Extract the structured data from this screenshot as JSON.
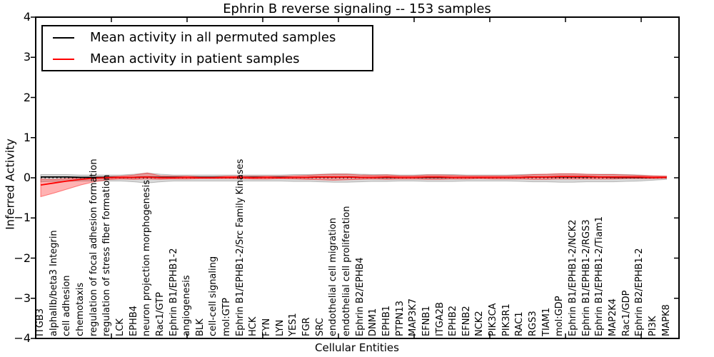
{
  "title": "Ephrin B reverse signaling -- 153 samples",
  "legend": {
    "items": [
      {
        "label": "Mean activity in all permuted samples",
        "color": "#000000"
      },
      {
        "label": "Mean activity in patient samples",
        "color": "#ff0000"
      }
    ]
  },
  "axes": {
    "ylabel": "Inferred Activity",
    "xlabel": "Cellular Entities",
    "yticks": [
      "4",
      "3",
      "2",
      "1",
      "0",
      "−1",
      "−2",
      "−3",
      "−4"
    ],
    "ylim": [
      -4,
      4
    ],
    "grid": false
  },
  "chart_data": {
    "type": "line",
    "title": "Ephrin B reverse signaling -- 153 samples",
    "xlabel": "Cellular Entities",
    "ylabel": "Inferred Activity",
    "ylim": [
      -4,
      4
    ],
    "legend_position": "upper left",
    "categories": [
      "ITGB3",
      "alphaIIb/beta3 Integrin",
      "cell adhesion",
      "chemotaxis",
      "regulation of focal adhesion formation",
      "regulation of stress fiber formation",
      "LCK",
      "EPHB4",
      "neuron projection morphogenesis",
      "Rac1/GTP",
      "Ephrin B1/EPHB1-2",
      "angiogenesis",
      "BLK",
      "cell-cell signaling",
      "mol:GTP",
      "Ephrin B1/EPHB1-2/Src Family Kinases",
      "HCK",
      "FYN",
      "LYN",
      "YES1",
      "FGR",
      "SRC",
      "endothelial cell migration",
      "endothelial cell proliferation",
      "Ephrin B2/EPHB4",
      "DNM1",
      "EPHB1",
      "PTPN13",
      "MAP3K7",
      "EFNB1",
      "ITGA2B",
      "EPHB2",
      "EFNB2",
      "NCK2",
      "PIK3CA",
      "PIK3R1",
      "RAC1",
      "RGS3",
      "TIAM1",
      "mol:GDP",
      "Ephrin B1/EPHB1-2/NCK2",
      "Ephrin B1/EPHB1-2/RGS3",
      "Ephrin B1/EPHB1-2/Tiam1",
      "MAP2K4",
      "Rac1/GDP",
      "Ephrin B2/EPHB1-2",
      "PI3K",
      "MAPK8"
    ],
    "series": [
      {
        "name": "Mean activity in all permuted samples",
        "color": "#000000",
        "style": "solid",
        "values": [
          0.02,
          0.02,
          0.02,
          0.01,
          0.01,
          0.01,
          0.01,
          0.01,
          0.02,
          0.01,
          0.01,
          0.01,
          0.01,
          0.01,
          0.01,
          0.01,
          0.01,
          0.01,
          0.01,
          0.01,
          0.01,
          0.02,
          0.02,
          0.02,
          0.01,
          0.01,
          0.01,
          0.01,
          0.01,
          0.01,
          0.01,
          0.01,
          0.01,
          0.01,
          0.01,
          0.01,
          0.01,
          0.02,
          0.02,
          0.02,
          0.02,
          0.02,
          0.02,
          0.01,
          0.01,
          0.01,
          0.01,
          0.01
        ]
      },
      {
        "name": "Mean activity in patient samples",
        "color": "#ff0000",
        "style": "solid",
        "values": [
          -0.18,
          -0.13,
          -0.08,
          -0.04,
          -0.01,
          0.0,
          0.01,
          0.01,
          0.02,
          0.0,
          0.0,
          0.01,
          0.0,
          0.0,
          0.01,
          0.01,
          0.0,
          0.01,
          0.0,
          0.01,
          0.01,
          0.02,
          0.02,
          0.02,
          0.01,
          0.01,
          0.02,
          0.01,
          0.01,
          0.02,
          0.02,
          0.01,
          0.01,
          0.01,
          0.01,
          0.01,
          0.01,
          0.02,
          0.02,
          0.03,
          0.03,
          0.03,
          0.02,
          0.02,
          0.02,
          0.02,
          0.01,
          0.01
        ]
      }
    ],
    "reference_line": {
      "name": "zero-reference",
      "value": 0,
      "style": "dotted",
      "color": "#000000"
    },
    "bands": [
      {
        "name": "permuted-confidence-band",
        "color": "#000000",
        "opacity": 0.15,
        "lo": [
          -0.1,
          -0.09,
          -0.09,
          -0.08,
          -0.08,
          -0.08,
          -0.08,
          -0.1,
          -0.13,
          -0.1,
          -0.08,
          -0.08,
          -0.08,
          -0.08,
          -0.08,
          -0.08,
          -0.08,
          -0.08,
          -0.08,
          -0.09,
          -0.09,
          -0.1,
          -0.11,
          -0.11,
          -0.1,
          -0.09,
          -0.09,
          -0.08,
          -0.08,
          -0.09,
          -0.09,
          -0.09,
          -0.08,
          -0.08,
          -0.08,
          -0.08,
          -0.09,
          -0.1,
          -0.1,
          -0.11,
          -0.11,
          -0.1,
          -0.1,
          -0.1,
          -0.09,
          -0.08,
          -0.06,
          -0.04
        ],
        "hi": [
          0.08,
          0.08,
          0.08,
          0.07,
          0.07,
          0.07,
          0.07,
          0.09,
          0.12,
          0.09,
          0.07,
          0.07,
          0.07,
          0.07,
          0.07,
          0.07,
          0.07,
          0.07,
          0.07,
          0.08,
          0.08,
          0.09,
          0.1,
          0.1,
          0.09,
          0.08,
          0.08,
          0.07,
          0.07,
          0.08,
          0.08,
          0.08,
          0.07,
          0.07,
          0.07,
          0.07,
          0.08,
          0.09,
          0.09,
          0.1,
          0.1,
          0.09,
          0.09,
          0.09,
          0.08,
          0.07,
          0.05,
          0.04
        ]
      },
      {
        "name": "patient-confidence-band",
        "color": "#ff0000",
        "opacity": 0.3,
        "lo": [
          -0.47,
          -0.38,
          -0.28,
          -0.18,
          -0.1,
          -0.05,
          -0.03,
          -0.04,
          -0.03,
          -0.04,
          -0.03,
          -0.03,
          -0.02,
          -0.02,
          -0.02,
          -0.02,
          -0.03,
          -0.03,
          -0.02,
          -0.03,
          -0.04,
          -0.05,
          -0.06,
          -0.05,
          -0.04,
          -0.03,
          -0.04,
          -0.03,
          -0.03,
          -0.04,
          -0.04,
          -0.03,
          -0.03,
          -0.02,
          -0.03,
          -0.03,
          -0.03,
          -0.04,
          -0.04,
          -0.03,
          -0.03,
          -0.03,
          -0.03,
          -0.03,
          -0.02,
          -0.02,
          -0.02,
          -0.01
        ],
        "hi": [
          -0.03,
          -0.04,
          -0.02,
          0.0,
          0.02,
          0.03,
          0.04,
          0.07,
          0.12,
          0.05,
          0.04,
          0.04,
          0.03,
          0.03,
          0.04,
          0.04,
          0.04,
          0.04,
          0.04,
          0.05,
          0.06,
          0.08,
          0.09,
          0.09,
          0.07,
          0.06,
          0.07,
          0.05,
          0.05,
          0.07,
          0.07,
          0.06,
          0.05,
          0.05,
          0.05,
          0.05,
          0.06,
          0.08,
          0.09,
          0.1,
          0.1,
          0.09,
          0.08,
          0.08,
          0.07,
          0.06,
          0.05,
          0.04
        ]
      }
    ]
  }
}
